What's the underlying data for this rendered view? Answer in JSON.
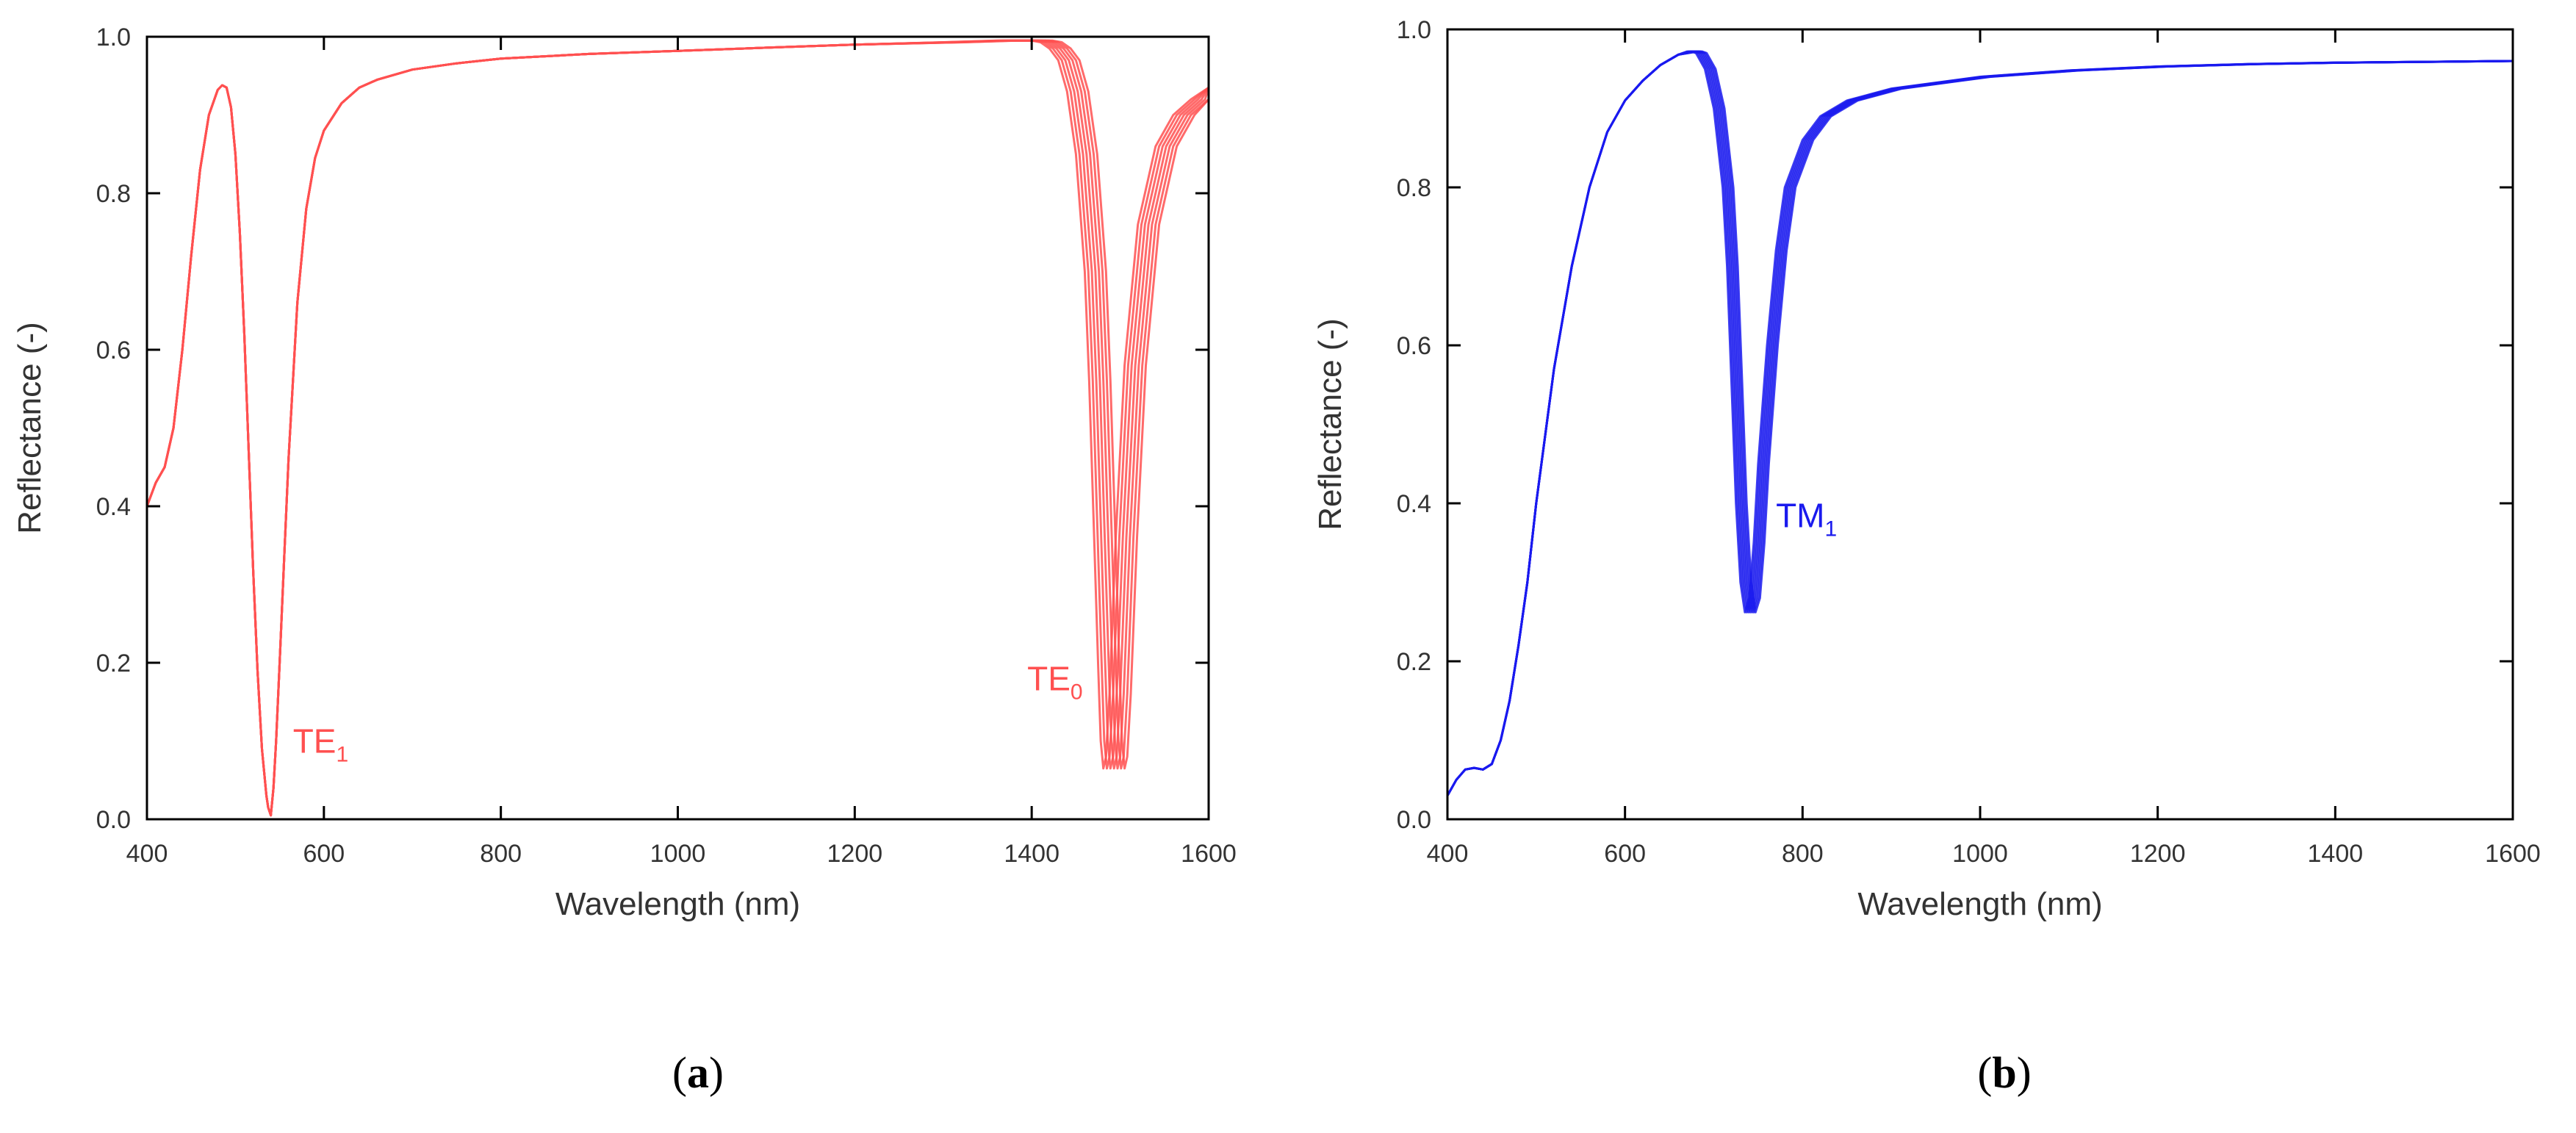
{
  "chart_data": [
    {
      "id": "a",
      "type": "line",
      "panel_label": "a",
      "xlabel": "Wavelength (nm)",
      "ylabel": "Reflectance (-)",
      "xlim": [
        400,
        1600
      ],
      "ylim": [
        0,
        1
      ],
      "xticks": [
        400,
        600,
        800,
        1000,
        1200,
        1400,
        1600
      ],
      "yticks": [
        0.0,
        0.2,
        0.4,
        0.6,
        0.8,
        1.0
      ],
      "xtick_labels": [
        "400",
        "600",
        "800",
        "1000",
        "1200",
        "1400",
        "1600"
      ],
      "ytick_labels": [
        "0.0",
        "0.2",
        "0.4",
        "0.6",
        "0.8",
        "1.0"
      ],
      "grid": false,
      "color": "#ff5050",
      "series_count": 7,
      "series_shift_nm": [
        0,
        4,
        8,
        12,
        16,
        20,
        24
      ],
      "shift_applies_above_nm": 1250,
      "x": [
        400,
        410,
        420,
        430,
        440,
        450,
        460,
        470,
        480,
        485,
        490,
        495,
        500,
        505,
        510,
        515,
        520,
        525,
        530,
        535,
        537,
        540,
        543,
        546,
        550,
        555,
        560,
        570,
        580,
        590,
        600,
        620,
        640,
        660,
        700,
        750,
        800,
        900,
        1000,
        1100,
        1200,
        1300,
        1360,
        1400,
        1410,
        1420,
        1430,
        1440,
        1450,
        1460,
        1465,
        1470,
        1475,
        1478,
        1481,
        1484,
        1488,
        1495,
        1505,
        1520,
        1540,
        1560,
        1580,
        1600
      ],
      "y": [
        0.4,
        0.43,
        0.45,
        0.5,
        0.6,
        0.72,
        0.83,
        0.9,
        0.932,
        0.938,
        0.935,
        0.91,
        0.85,
        0.75,
        0.62,
        0.47,
        0.32,
        0.19,
        0.09,
        0.03,
        0.015,
        0.005,
        0.04,
        0.1,
        0.2,
        0.33,
        0.46,
        0.66,
        0.78,
        0.845,
        0.88,
        0.915,
        0.935,
        0.945,
        0.958,
        0.966,
        0.972,
        0.978,
        0.982,
        0.986,
        0.99,
        0.993,
        0.995,
        0.995,
        0.993,
        0.985,
        0.97,
        0.93,
        0.85,
        0.7,
        0.56,
        0.38,
        0.2,
        0.1,
        0.065,
        0.08,
        0.16,
        0.36,
        0.58,
        0.76,
        0.86,
        0.9,
        0.92,
        0.935
      ],
      "annotations": [
        {
          "label": "TE",
          "sub": "1",
          "x": 565,
          "y": 0.085
        },
        {
          "label": "TE",
          "sub": "0",
          "x": 1395,
          "y": 0.165
        }
      ]
    },
    {
      "id": "b",
      "type": "line",
      "panel_label": "b",
      "xlabel": "Wavelength (nm)",
      "ylabel": "Reflectance (-)",
      "xlim": [
        400,
        1600
      ],
      "ylim": [
        0,
        1
      ],
      "xticks": [
        400,
        600,
        800,
        1000,
        1200,
        1400,
        1600
      ],
      "yticks": [
        0.0,
        0.2,
        0.4,
        0.6,
        0.8,
        1.0
      ],
      "xtick_labels": [
        "400",
        "600",
        "800",
        "1000",
        "1200",
        "1400",
        "1600"
      ],
      "ytick_labels": [
        "0.0",
        "0.2",
        "0.4",
        "0.6",
        "0.8",
        "1.0"
      ],
      "grid": false,
      "color": "#1a1aee",
      "series_count": 7,
      "series_shift_nm": [
        0,
        2,
        4,
        6,
        8,
        10,
        12
      ],
      "shift_applies_above_nm": 660,
      "x": [
        400,
        410,
        420,
        430,
        440,
        450,
        460,
        470,
        480,
        490,
        500,
        520,
        540,
        560,
        580,
        600,
        620,
        640,
        660,
        670,
        675,
        680,
        690,
        700,
        710,
        715,
        720,
        725,
        730,
        735,
        740,
        745,
        750,
        760,
        770,
        780,
        800,
        820,
        850,
        900,
        1000,
        1100,
        1200,
        1300,
        1400,
        1500,
        1600
      ],
      "y": [
        0.03,
        0.05,
        0.063,
        0.065,
        0.063,
        0.07,
        0.1,
        0.15,
        0.22,
        0.3,
        0.4,
        0.57,
        0.7,
        0.8,
        0.87,
        0.91,
        0.935,
        0.955,
        0.968,
        0.972,
        0.972,
        0.97,
        0.95,
        0.9,
        0.8,
        0.7,
        0.55,
        0.4,
        0.3,
        0.262,
        0.28,
        0.35,
        0.45,
        0.6,
        0.72,
        0.8,
        0.86,
        0.89,
        0.91,
        0.925,
        0.94,
        0.948,
        0.953,
        0.956,
        0.958,
        0.959,
        0.96
      ],
      "annotations": [
        {
          "label": "TM",
          "sub": "1",
          "x": 770,
          "y": 0.37
        }
      ]
    }
  ]
}
